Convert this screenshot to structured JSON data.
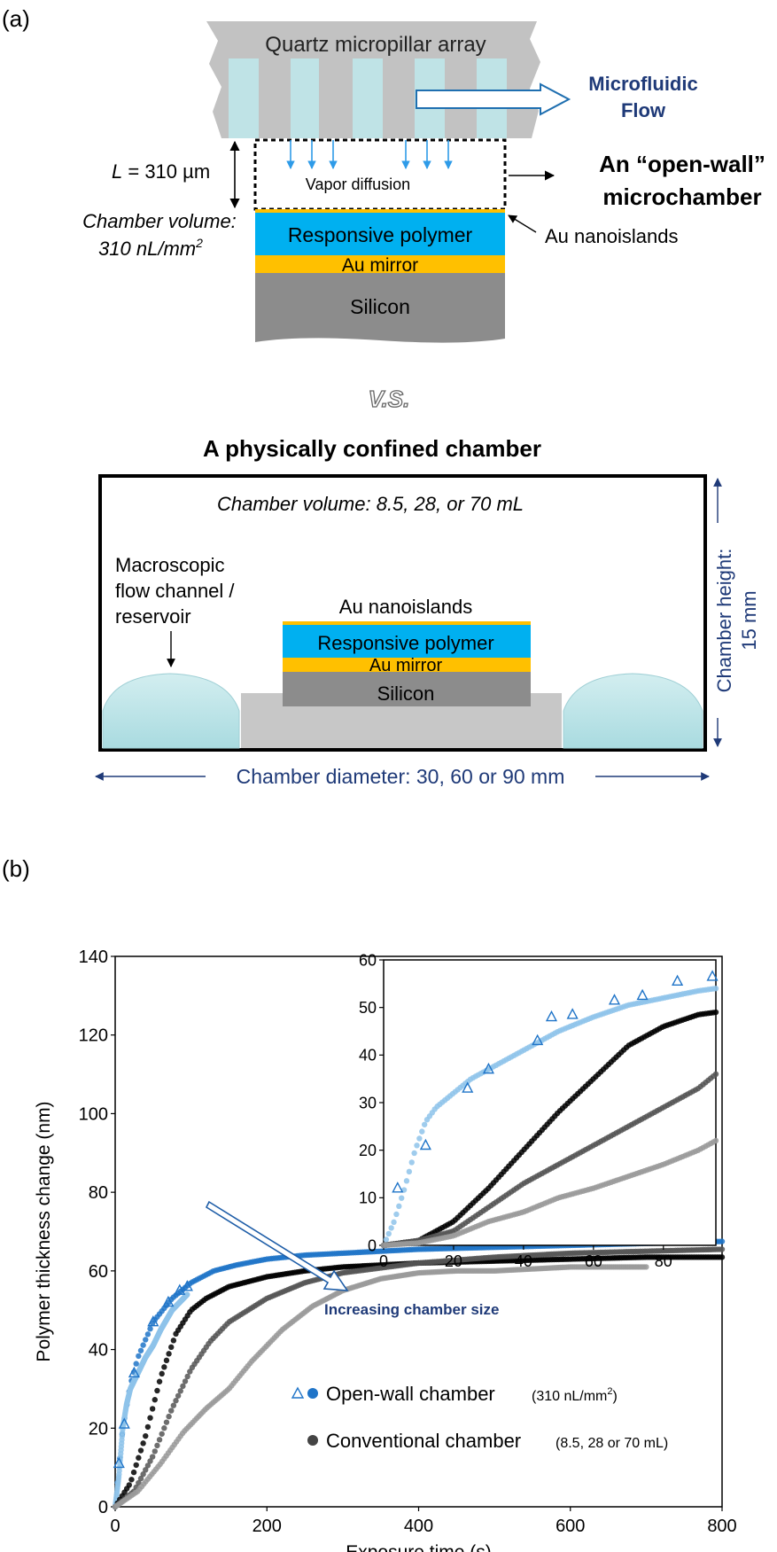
{
  "panel_a": {
    "label": "(a)",
    "quartz_label": "Quartz micropillar array",
    "flow_label_1": "Microfluidic",
    "flow_label_2": "Flow",
    "L_symbol": "L",
    "L_value": " = 310 µm",
    "vapor_label": "Vapor diffusion",
    "openwall_title_1": "An “open-wall”",
    "openwall_title_2": "microchamber",
    "chamber_volume_1": "Chamber volume:",
    "chamber_volume_2": "310 nL/mm",
    "chamber_volume_sup": "2",
    "responsive_polymer": "Responsive polymer",
    "au_mirror": "Au mirror",
    "silicon": "Silicon",
    "au_nanoislands": "Au nanoislands",
    "vs": "V.S.",
    "confined_title": "A physically confined chamber",
    "confined_volume": "Chamber volume: 8.5, 28, or 70 mL",
    "macro_1": "Macroscopic",
    "macro_2": "flow channel /",
    "macro_3": "reservoir",
    "nanoislands_2": "Au nanoislands",
    "polymer_2": "Responsive polymer",
    "mirror_2": "Au mirror",
    "silicon_2": "Silicon",
    "chamber_height_1": "Chamber height:",
    "chamber_height_2": "15 mm",
    "chamber_diameter": "Chamber diameter: 30, 60 or 90 mm",
    "colors": {
      "quartz": "#c0c0c0",
      "fluid": "#bfe3e6",
      "polymer": "#00b0f0",
      "gold": "#ffc000",
      "silicon": "#8c8c8c",
      "navy": "#1f3a78",
      "arrow_blue": "#2e9be8"
    }
  },
  "panel_b": {
    "label": "(b)",
    "annotation": "Increasing chamber size",
    "legend": {
      "open_wall": "Open-wall chamber",
      "open_wall_note": "(310 nL/mm",
      "open_wall_sup": "2",
      "open_wall_close": ")",
      "conventional": "Conventional chamber",
      "conventional_note": "(8.5, 28 or 70 mL)"
    }
  },
  "chart_data": [
    {
      "type": "scatter",
      "xlabel": "Exposure time (s)",
      "ylabel": "Polymer thickness change (nm)",
      "xlim": [
        0,
        800
      ],
      "ylim": [
        0,
        140
      ],
      "x_ticks": [
        0,
        200,
        400,
        600,
        800
      ],
      "y_ticks": [
        0,
        20,
        40,
        60,
        80,
        100,
        120,
        140
      ],
      "legend_position": "bottom-right",
      "series": [
        {
          "name": "Open-wall chamber",
          "style": "blue dots",
          "color": "#1f74c8",
          "x": [
            0,
            10,
            20,
            30,
            50,
            75,
            100,
            130,
            160,
            200,
            250,
            300,
            400,
            500,
            600,
            700,
            800
          ],
          "y": [
            0,
            20,
            31,
            38,
            47,
            53,
            57,
            60,
            61.5,
            63,
            64,
            64.5,
            65.5,
            66,
            66.5,
            67,
            67.5
          ]
        },
        {
          "name": "Open-wall chamber",
          "style": "light blue dots",
          "color": "#8ec3ea",
          "x": [
            0,
            5,
            10,
            15,
            20,
            30,
            40,
            50,
            60,
            75,
            95
          ],
          "y": [
            0,
            8,
            20,
            26,
            30,
            34,
            38,
            41,
            45,
            50,
            54
          ]
        },
        {
          "name": "Open-wall chamber",
          "style": "triangles",
          "color": "#1f74c8",
          "x": [
            5,
            12,
            25,
            50,
            70,
            85,
            95
          ],
          "y": [
            11,
            21,
            34,
            47,
            52,
            55,
            56
          ]
        },
        {
          "name": "Conventional chamber",
          "style": "black dots",
          "color": "#000000",
          "x": [
            0,
            20,
            40,
            60,
            80,
            100,
            120,
            150,
            200,
            250,
            300,
            400,
            500,
            600,
            700,
            800
          ],
          "y": [
            0,
            6,
            18,
            33,
            44,
            50,
            53,
            56,
            58.5,
            60,
            61,
            62,
            62.5,
            63,
            63.5,
            63.5
          ]
        },
        {
          "name": "Conventional chamber",
          "style": "dark grey dots",
          "color": "#555555",
          "x": [
            0,
            25,
            50,
            75,
            100,
            125,
            150,
            200,
            250,
            300,
            400,
            500,
            600,
            700,
            800
          ],
          "y": [
            0,
            4,
            13,
            25,
            35,
            42,
            47,
            53,
            57,
            59.5,
            62,
            63.5,
            64.5,
            65,
            65.5
          ]
        },
        {
          "name": "Conventional chamber",
          "style": "light grey dots",
          "color": "#9a9a9a",
          "x": [
            0,
            30,
            60,
            90,
            120,
            150,
            180,
            220,
            260,
            300,
            350,
            400,
            450,
            500,
            550,
            600,
            650,
            700
          ],
          "y": [
            0,
            4,
            11,
            19,
            25,
            30,
            37,
            45,
            51,
            55,
            58,
            59.5,
            60,
            60,
            60.5,
            61,
            61,
            61
          ]
        }
      ]
    },
    {
      "type": "scatter",
      "role": "inset",
      "xlim": [
        0,
        95
      ],
      "ylim": [
        0,
        60
      ],
      "x_ticks": [
        0,
        20,
        40,
        60,
        80
      ],
      "y_ticks": [
        0,
        10,
        20,
        30,
        40,
        50,
        60
      ],
      "series": [
        {
          "name": "Open-wall chamber",
          "style": "light blue dots",
          "color": "#8ec3ea",
          "x": [
            0,
            3,
            6,
            9,
            12,
            15,
            20,
            25,
            30,
            40,
            50,
            60,
            70,
            80,
            90,
            95
          ],
          "y": [
            0,
            5,
            12,
            20,
            26,
            29,
            32,
            35,
            37,
            41,
            45,
            48,
            50.5,
            52,
            53.5,
            54
          ]
        },
        {
          "name": "Open-wall chamber",
          "style": "triangles",
          "color": "#1f74c8",
          "x": [
            4,
            12,
            24,
            30,
            44,
            48,
            54,
            66,
            74,
            84,
            94
          ],
          "y": [
            12,
            21,
            33,
            37,
            43,
            48,
            48.5,
            51.5,
            52.5,
            55.5,
            56.5
          ]
        },
        {
          "name": "Conventional chamber",
          "style": "black",
          "color": "#000000",
          "x": [
            0,
            10,
            20,
            30,
            40,
            50,
            60,
            70,
            80,
            90,
            95
          ],
          "y": [
            0,
            1,
            5,
            12,
            20,
            28,
            35,
            42,
            46,
            48.5,
            49
          ]
        },
        {
          "name": "Conventional chamber",
          "style": "dark grey",
          "color": "#555555",
          "x": [
            0,
            10,
            20,
            30,
            40,
            50,
            60,
            70,
            80,
            90,
            95
          ],
          "y": [
            0,
            1,
            3,
            8,
            13,
            17,
            21,
            25,
            29,
            33,
            36
          ]
        },
        {
          "name": "Conventional chamber",
          "style": "light grey",
          "color": "#9a9a9a",
          "x": [
            0,
            10,
            20,
            30,
            40,
            50,
            60,
            70,
            80,
            90,
            95
          ],
          "y": [
            0,
            0.5,
            2,
            5,
            7,
            10,
            12,
            14.5,
            17,
            20,
            22
          ]
        }
      ]
    }
  ]
}
